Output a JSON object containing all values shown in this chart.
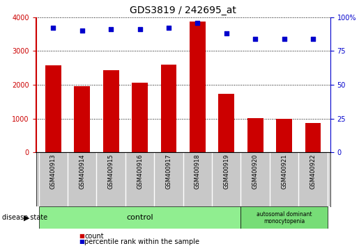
{
  "title": "GDS3819 / 242695_at",
  "samples": [
    "GSM400913",
    "GSM400914",
    "GSM400915",
    "GSM400916",
    "GSM400917",
    "GSM400918",
    "GSM400919",
    "GSM400920",
    "GSM400921",
    "GSM400922"
  ],
  "counts": [
    2580,
    1960,
    2440,
    2060,
    2600,
    3870,
    1740,
    1020,
    990,
    880
  ],
  "percentile_ranks": [
    92,
    90,
    91,
    91,
    92,
    96,
    88,
    84,
    84,
    84
  ],
  "bar_color": "#cc0000",
  "dot_color": "#0000cc",
  "ylim_left": [
    0,
    4000
  ],
  "ylim_right": [
    0,
    100
  ],
  "yticks_left": [
    0,
    1000,
    2000,
    3000,
    4000
  ],
  "yticks_right": [
    0,
    25,
    50,
    75,
    100
  ],
  "control_samples": 7,
  "disease_samples": 3,
  "control_label": "control",
  "disease_label": "autosomal dominant\nmonocytopenia",
  "disease_state_label": "disease state",
  "legend_count": "count",
  "legend_pct": "percentile rank within the sample",
  "control_color": "#90ee90",
  "disease_color": "#77dd77",
  "xlabel_area_color": "#c8c8c8",
  "background_color": "#ffffff",
  "grid_color": "#000000",
  "title_fontsize": 10,
  "tick_fontsize": 7,
  "label_fontsize": 7,
  "sample_fontsize": 6,
  "legend_fontsize": 7
}
